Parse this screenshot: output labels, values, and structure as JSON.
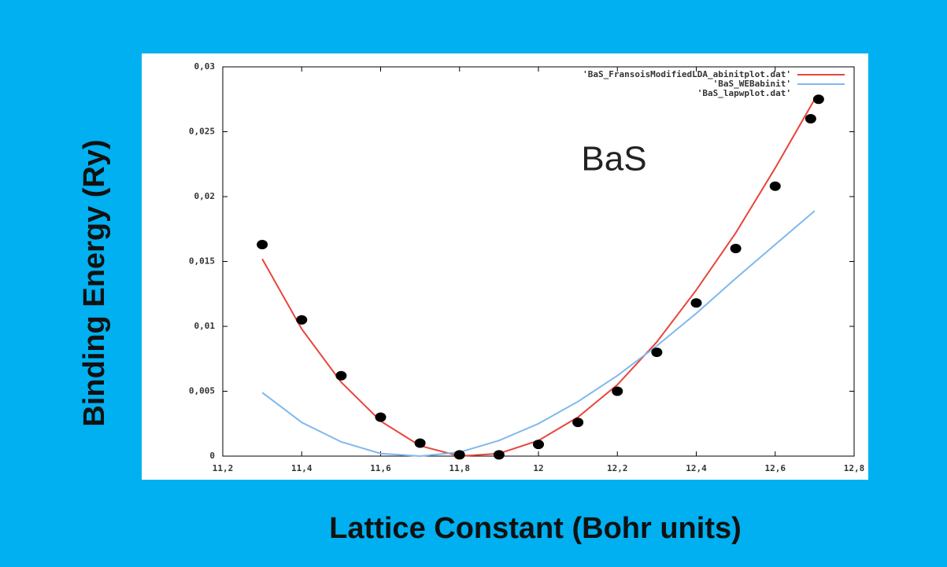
{
  "chart_data": {
    "type": "line",
    "annotation": "BaS",
    "x_label": "Lattice Constant (Bohr units)",
    "y_label": "Binding Energy (Ry)",
    "xlim": [
      11.2,
      12.8
    ],
    "xticks": [
      {
        "value": 11.2,
        "label": "11,2"
      },
      {
        "value": 11.4,
        "label": "11,4"
      },
      {
        "value": 11.6,
        "label": "11,6"
      },
      {
        "value": 11.8,
        "label": "11,8"
      },
      12,
      {
        "value": 12.2,
        "label": "12,2"
      },
      {
        "value": 12.4,
        "label": "12,4"
      },
      {
        "value": 12.6,
        "label": "12,6"
      },
      {
        "value": 12.8,
        "label": "12,8"
      }
    ],
    "ylim": [
      0,
      0.03
    ],
    "yticks": [
      0,
      {
        "value": 0.005,
        "label": "0,005"
      },
      {
        "value": 0.01,
        "label": "0,01"
      },
      {
        "value": 0.015,
        "label": "0,015"
      },
      {
        "value": 0.02,
        "label": "0,02"
      },
      {
        "value": 0.025,
        "label": "0,025"
      },
      {
        "value": 0.03,
        "label": "0,03"
      }
    ],
    "legend": "upper right",
    "series": [
      {
        "name": "'BaS_FransoisModifiedLDA_abinitplot.dat'",
        "color": "#e8453c",
        "marker": "none",
        "x": [
          11.3,
          11.4,
          11.5,
          11.6,
          11.7,
          11.8,
          11.9,
          12.0,
          12.1,
          12.2,
          12.3,
          12.4,
          12.5,
          12.6,
          12.7
        ],
        "values": [
          0.0152,
          0.0098,
          0.0057,
          0.0027,
          0.0008,
          0.0,
          0.0002,
          0.0012,
          0.003,
          0.0055,
          0.0088,
          0.0128,
          0.0172,
          0.0222,
          0.0275
        ]
      },
      {
        "name": "'BaS_WEBabinit'",
        "color": "#7fb8ec",
        "marker": "none",
        "x": [
          11.3,
          11.4,
          11.5,
          11.6,
          11.7,
          11.8,
          11.9,
          12.0,
          12.1,
          12.2,
          12.3,
          12.4,
          12.5,
          12.6,
          12.7
        ],
        "values": [
          0.0049,
          0.0026,
          0.0011,
          0.0002,
          0.0,
          0.0003,
          0.0012,
          0.0025,
          0.0042,
          0.0062,
          0.0085,
          0.011,
          0.0137,
          0.0163,
          0.0189
        ]
      },
      {
        "name": "'BaS_lapwplot.dat'",
        "color": "#000000",
        "marker": "dot",
        "x": [
          11.3,
          11.4,
          11.5,
          11.6,
          11.7,
          11.8,
          11.9,
          12.0,
          12.1,
          12.2,
          12.3,
          12.4,
          12.5,
          12.6,
          12.69,
          12.71
        ],
        "values": [
          0.0163,
          0.0105,
          0.0062,
          0.003,
          0.001,
          0.0001,
          0.0001,
          0.0009,
          0.0026,
          0.005,
          0.008,
          0.0118,
          0.016,
          0.0208,
          0.026,
          0.0275
        ]
      }
    ]
  }
}
